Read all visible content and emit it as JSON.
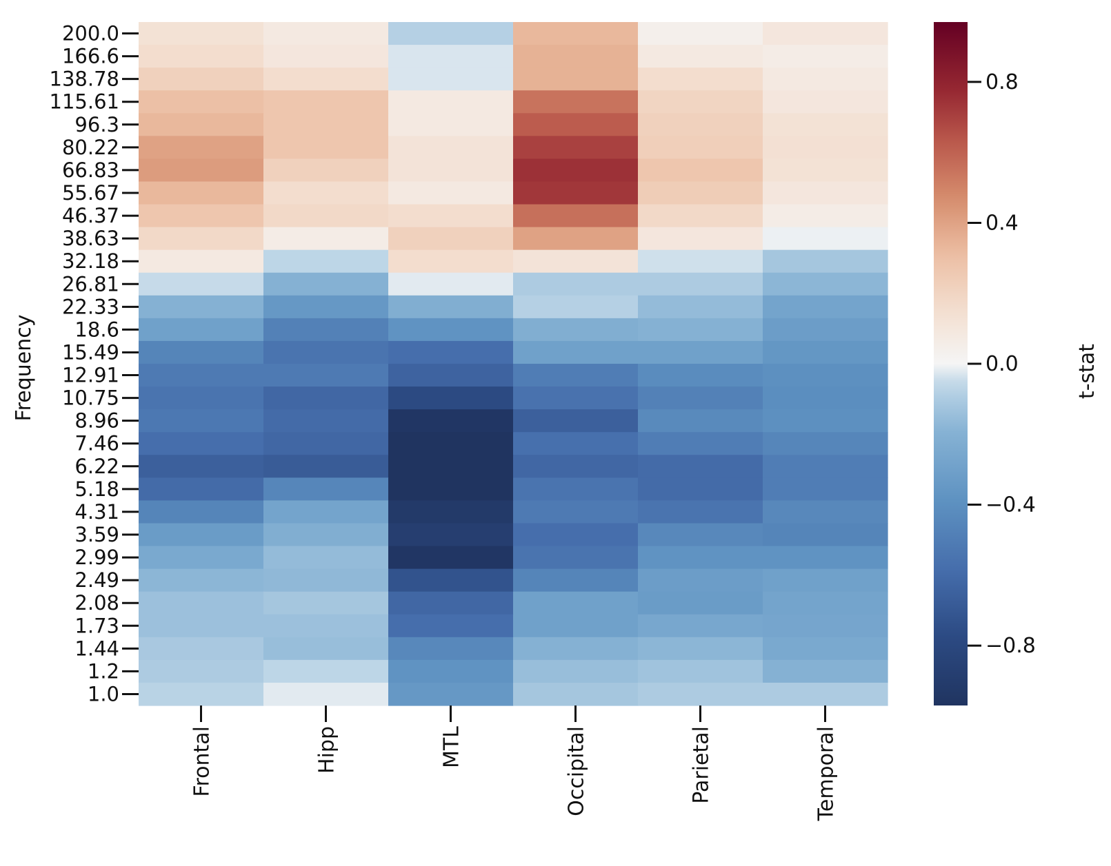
{
  "chart_data": {
    "type": "heatmap",
    "title": "",
    "xlabel": "",
    "ylabel": "Frequency",
    "colorbar_label": "t-stat",
    "colormap": "RdBu_r",
    "vmin": -0.97,
    "vmax": 0.97,
    "colorbar_ticks": [
      0.8,
      0.4,
      0.0,
      -0.4,
      -0.8
    ],
    "colorbar_tick_labels": [
      "0.8",
      "0.4",
      "0.0",
      "−0.4",
      "−0.8"
    ],
    "x_categories": [
      "Frontal",
      "Hipp",
      "MTL",
      "Occipital",
      "Parietal",
      "Temporal"
    ],
    "y_categories": [
      "200.0",
      "166.6",
      "138.78",
      "115.61",
      "96.3",
      "80.22",
      "66.83",
      "55.67",
      "46.37",
      "38.63",
      "32.18",
      "26.81",
      "22.33",
      "18.6",
      "15.49",
      "12.91",
      "10.75",
      "8.96",
      "7.46",
      "6.22",
      "5.18",
      "4.31",
      "3.59",
      "2.99",
      "2.49",
      "2.08",
      "1.73",
      "1.44",
      "1.2",
      "1.0"
    ],
    "values": [
      [
        0.13,
        0.08,
        -0.08,
        0.33,
        0.04,
        0.1
      ],
      [
        0.16,
        0.1,
        -0.03,
        0.35,
        0.08,
        0.06
      ],
      [
        0.22,
        0.16,
        -0.03,
        0.35,
        0.16,
        0.08
      ],
      [
        0.3,
        0.27,
        0.08,
        0.55,
        0.2,
        0.1
      ],
      [
        0.33,
        0.27,
        0.08,
        0.62,
        0.22,
        0.13
      ],
      [
        0.4,
        0.27,
        0.12,
        0.7,
        0.23,
        0.14
      ],
      [
        0.42,
        0.22,
        0.12,
        0.75,
        0.27,
        0.13
      ],
      [
        0.33,
        0.16,
        0.08,
        0.73,
        0.24,
        0.1
      ],
      [
        0.27,
        0.18,
        0.16,
        0.56,
        0.18,
        0.06
      ],
      [
        0.18,
        0.06,
        0.22,
        0.4,
        0.1,
        -0.01
      ],
      [
        0.08,
        -0.06,
        0.16,
        0.12,
        -0.04,
        -0.12
      ],
      [
        -0.05,
        -0.2,
        -0.02,
        -0.1,
        -0.1,
        -0.18
      ],
      [
        -0.2,
        -0.35,
        -0.22,
        -0.08,
        -0.16,
        -0.28
      ],
      [
        -0.3,
        -0.48,
        -0.38,
        -0.22,
        -0.2,
        -0.32
      ],
      [
        -0.46,
        -0.55,
        -0.58,
        -0.3,
        -0.3,
        -0.36
      ],
      [
        -0.52,
        -0.52,
        -0.64,
        -0.5,
        -0.42,
        -0.4
      ],
      [
        -0.55,
        -0.62,
        -0.78,
        -0.56,
        -0.48,
        -0.41
      ],
      [
        -0.53,
        -0.6,
        -0.95,
        -0.66,
        -0.43,
        -0.4
      ],
      [
        -0.58,
        -0.62,
        -0.98,
        -0.57,
        -0.5,
        -0.45
      ],
      [
        -0.66,
        -0.68,
        -1.0,
        -0.62,
        -0.6,
        -0.5
      ],
      [
        -0.6,
        -0.45,
        -1.0,
        -0.55,
        -0.6,
        -0.5
      ],
      [
        -0.46,
        -0.28,
        -0.92,
        -0.52,
        -0.55,
        -0.44
      ],
      [
        -0.33,
        -0.22,
        -0.88,
        -0.58,
        -0.44,
        -0.46
      ],
      [
        -0.25,
        -0.16,
        -0.95,
        -0.55,
        -0.38,
        -0.38
      ],
      [
        -0.18,
        -0.17,
        -0.73,
        -0.46,
        -0.32,
        -0.3
      ],
      [
        -0.14,
        -0.12,
        -0.62,
        -0.3,
        -0.33,
        -0.28
      ],
      [
        -0.14,
        -0.14,
        -0.58,
        -0.3,
        -0.26,
        -0.27
      ],
      [
        -0.11,
        -0.15,
        -0.44,
        -0.2,
        -0.18,
        -0.25
      ],
      [
        -0.1,
        -0.06,
        -0.38,
        -0.15,
        -0.13,
        -0.2
      ],
      [
        -0.07,
        -0.02,
        -0.35,
        -0.12,
        -0.1,
        -0.1
      ]
    ]
  }
}
